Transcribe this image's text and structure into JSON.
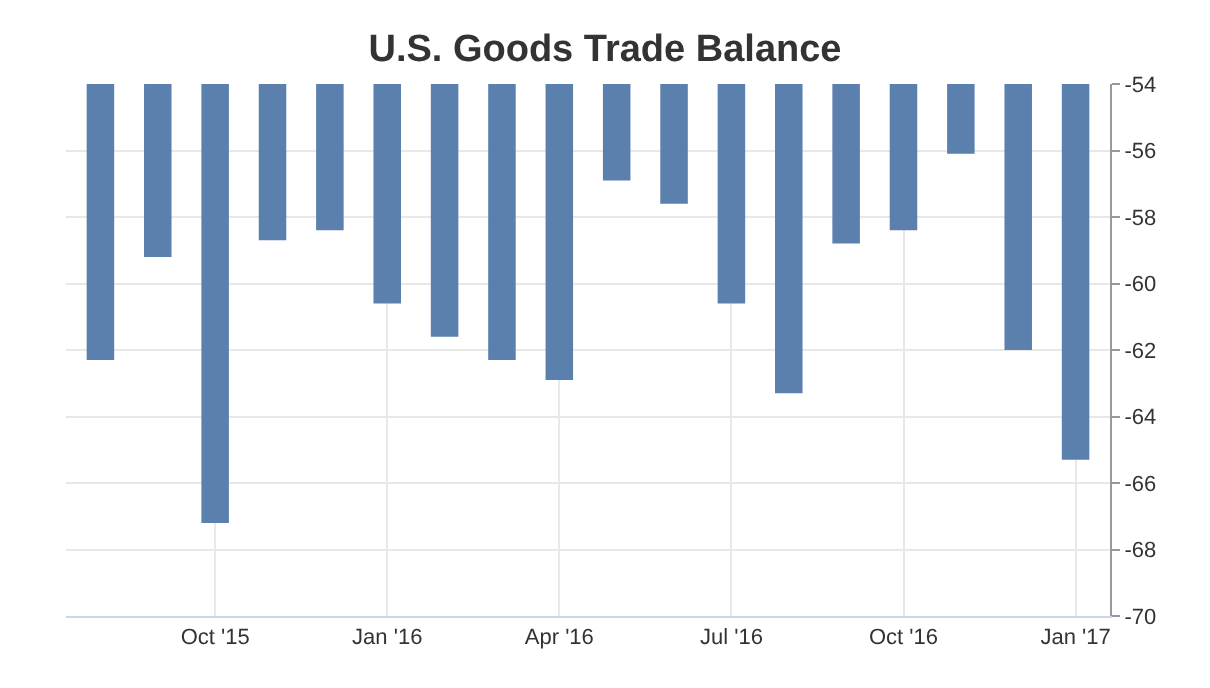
{
  "chart_data": {
    "type": "bar",
    "title": "U.S. Goods Trade Balance",
    "categories": [
      null,
      null,
      "Oct '15",
      null,
      null,
      "Jan '16",
      null,
      null,
      "Apr '16",
      null,
      null,
      "Jul '16",
      null,
      null,
      "Oct '16",
      null,
      null,
      "Jan '17"
    ],
    "values": [
      -62.3,
      -59.2,
      -67.2,
      -58.7,
      -58.4,
      -60.6,
      -61.6,
      -62.3,
      -62.9,
      -56.9,
      -57.6,
      -60.6,
      -63.3,
      -58.8,
      -58.4,
      -56.1,
      -62.0,
      -65.3
    ],
    "color": "#5b80ad",
    "ylim": [
      -70,
      -54
    ],
    "yticks": [
      -70,
      -68,
      -66,
      -64,
      -62,
      -60,
      -58,
      -56,
      -54
    ],
    "grid": true,
    "legend": false
  }
}
